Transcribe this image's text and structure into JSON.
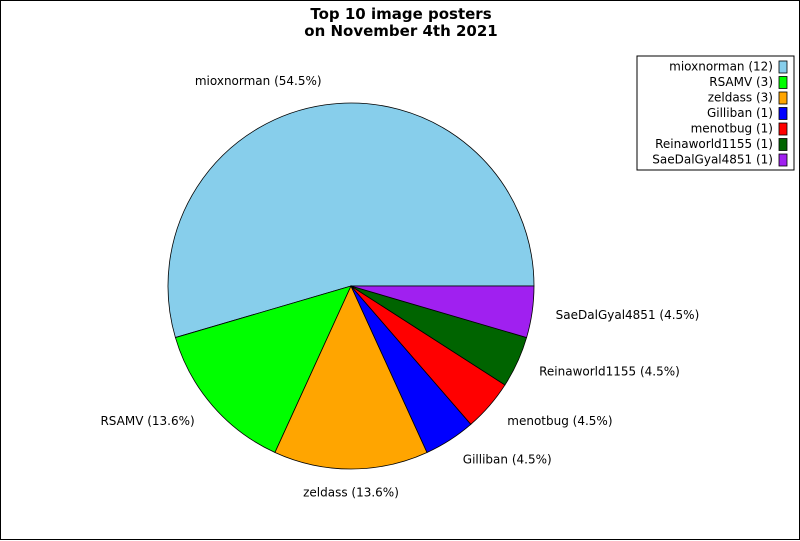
{
  "chart_data": {
    "type": "pie",
    "title": "Top 10 image posters",
    "subtitle": "on November 4th 2021",
    "categories": [
      "mioxnorman",
      "RSAMV",
      "zeldass",
      "Gilliban",
      "menotbug",
      "Reinaworld1155",
      "SaeDalGyal4851"
    ],
    "values": [
      12,
      3,
      3,
      1,
      1,
      1,
      1
    ],
    "percent_labels": [
      "54.5%",
      "13.6%",
      "13.6%",
      "4.5%",
      "4.5%",
      "4.5%",
      "4.5%"
    ],
    "colors": [
      "#87ceeb",
      "#00ff00",
      "#ffa500",
      "#0000ff",
      "#ff0000",
      "#006400",
      "#a020f0"
    ],
    "slice_labels": [
      "mioxnorman (54.5%)",
      "RSAMV (13.6%)",
      "zeldass (13.6%)",
      "Gilliban (4.5%)",
      "menotbug (4.5%)",
      "Reinaworld1155 (4.5%)",
      "SaeDalGyal4851 (4.5%)"
    ],
    "legend": [
      "mioxnorman (12)",
      "RSAMV (3)",
      "zeldass (3)",
      "Gilliban (1)",
      "menotbug (1)",
      "Reinaworld1155 (1)",
      "SaeDalGyal4851 (1)"
    ],
    "legend_placement": "top-right",
    "start_angle": "east",
    "direction": "counterclockwise"
  }
}
